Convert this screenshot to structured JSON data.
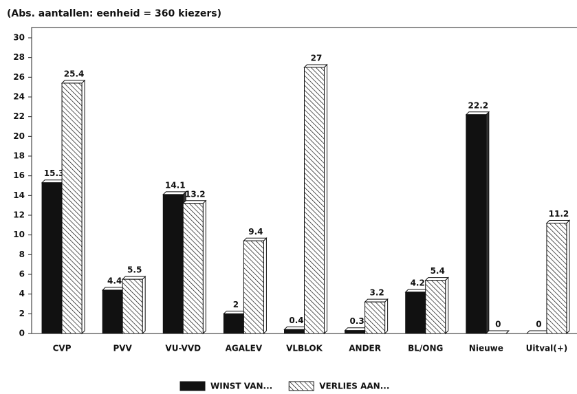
{
  "chart_data": {
    "type": "bar",
    "title": "(Abs. aantallen: eenheid = 360 kiezers)",
    "categories": [
      "CVP",
      "PVV",
      "VU-VVD",
      "AGALEV",
      "VLBLOK",
      "ANDER",
      "BL/ONG",
      "Nieuwe",
      "Uitval(+)"
    ],
    "series": [
      {
        "name": "WINST VAN...",
        "color": "#111111",
        "values": [
          15.3,
          4.4,
          14.1,
          2,
          0.4,
          0.3,
          4.2,
          22.2,
          0
        ]
      },
      {
        "name": "VERLIES AAN...",
        "color": "hatch",
        "values": [
          25.4,
          5.5,
          13.2,
          9.4,
          27,
          3.2,
          5.4,
          0,
          11.2
        ]
      }
    ],
    "ylim": [
      0,
      30
    ],
    "yticks": [
      0,
      2,
      4,
      6,
      8,
      10,
      12,
      14,
      16,
      18,
      20,
      22,
      24,
      26,
      28,
      30
    ],
    "legend": "bottom"
  }
}
